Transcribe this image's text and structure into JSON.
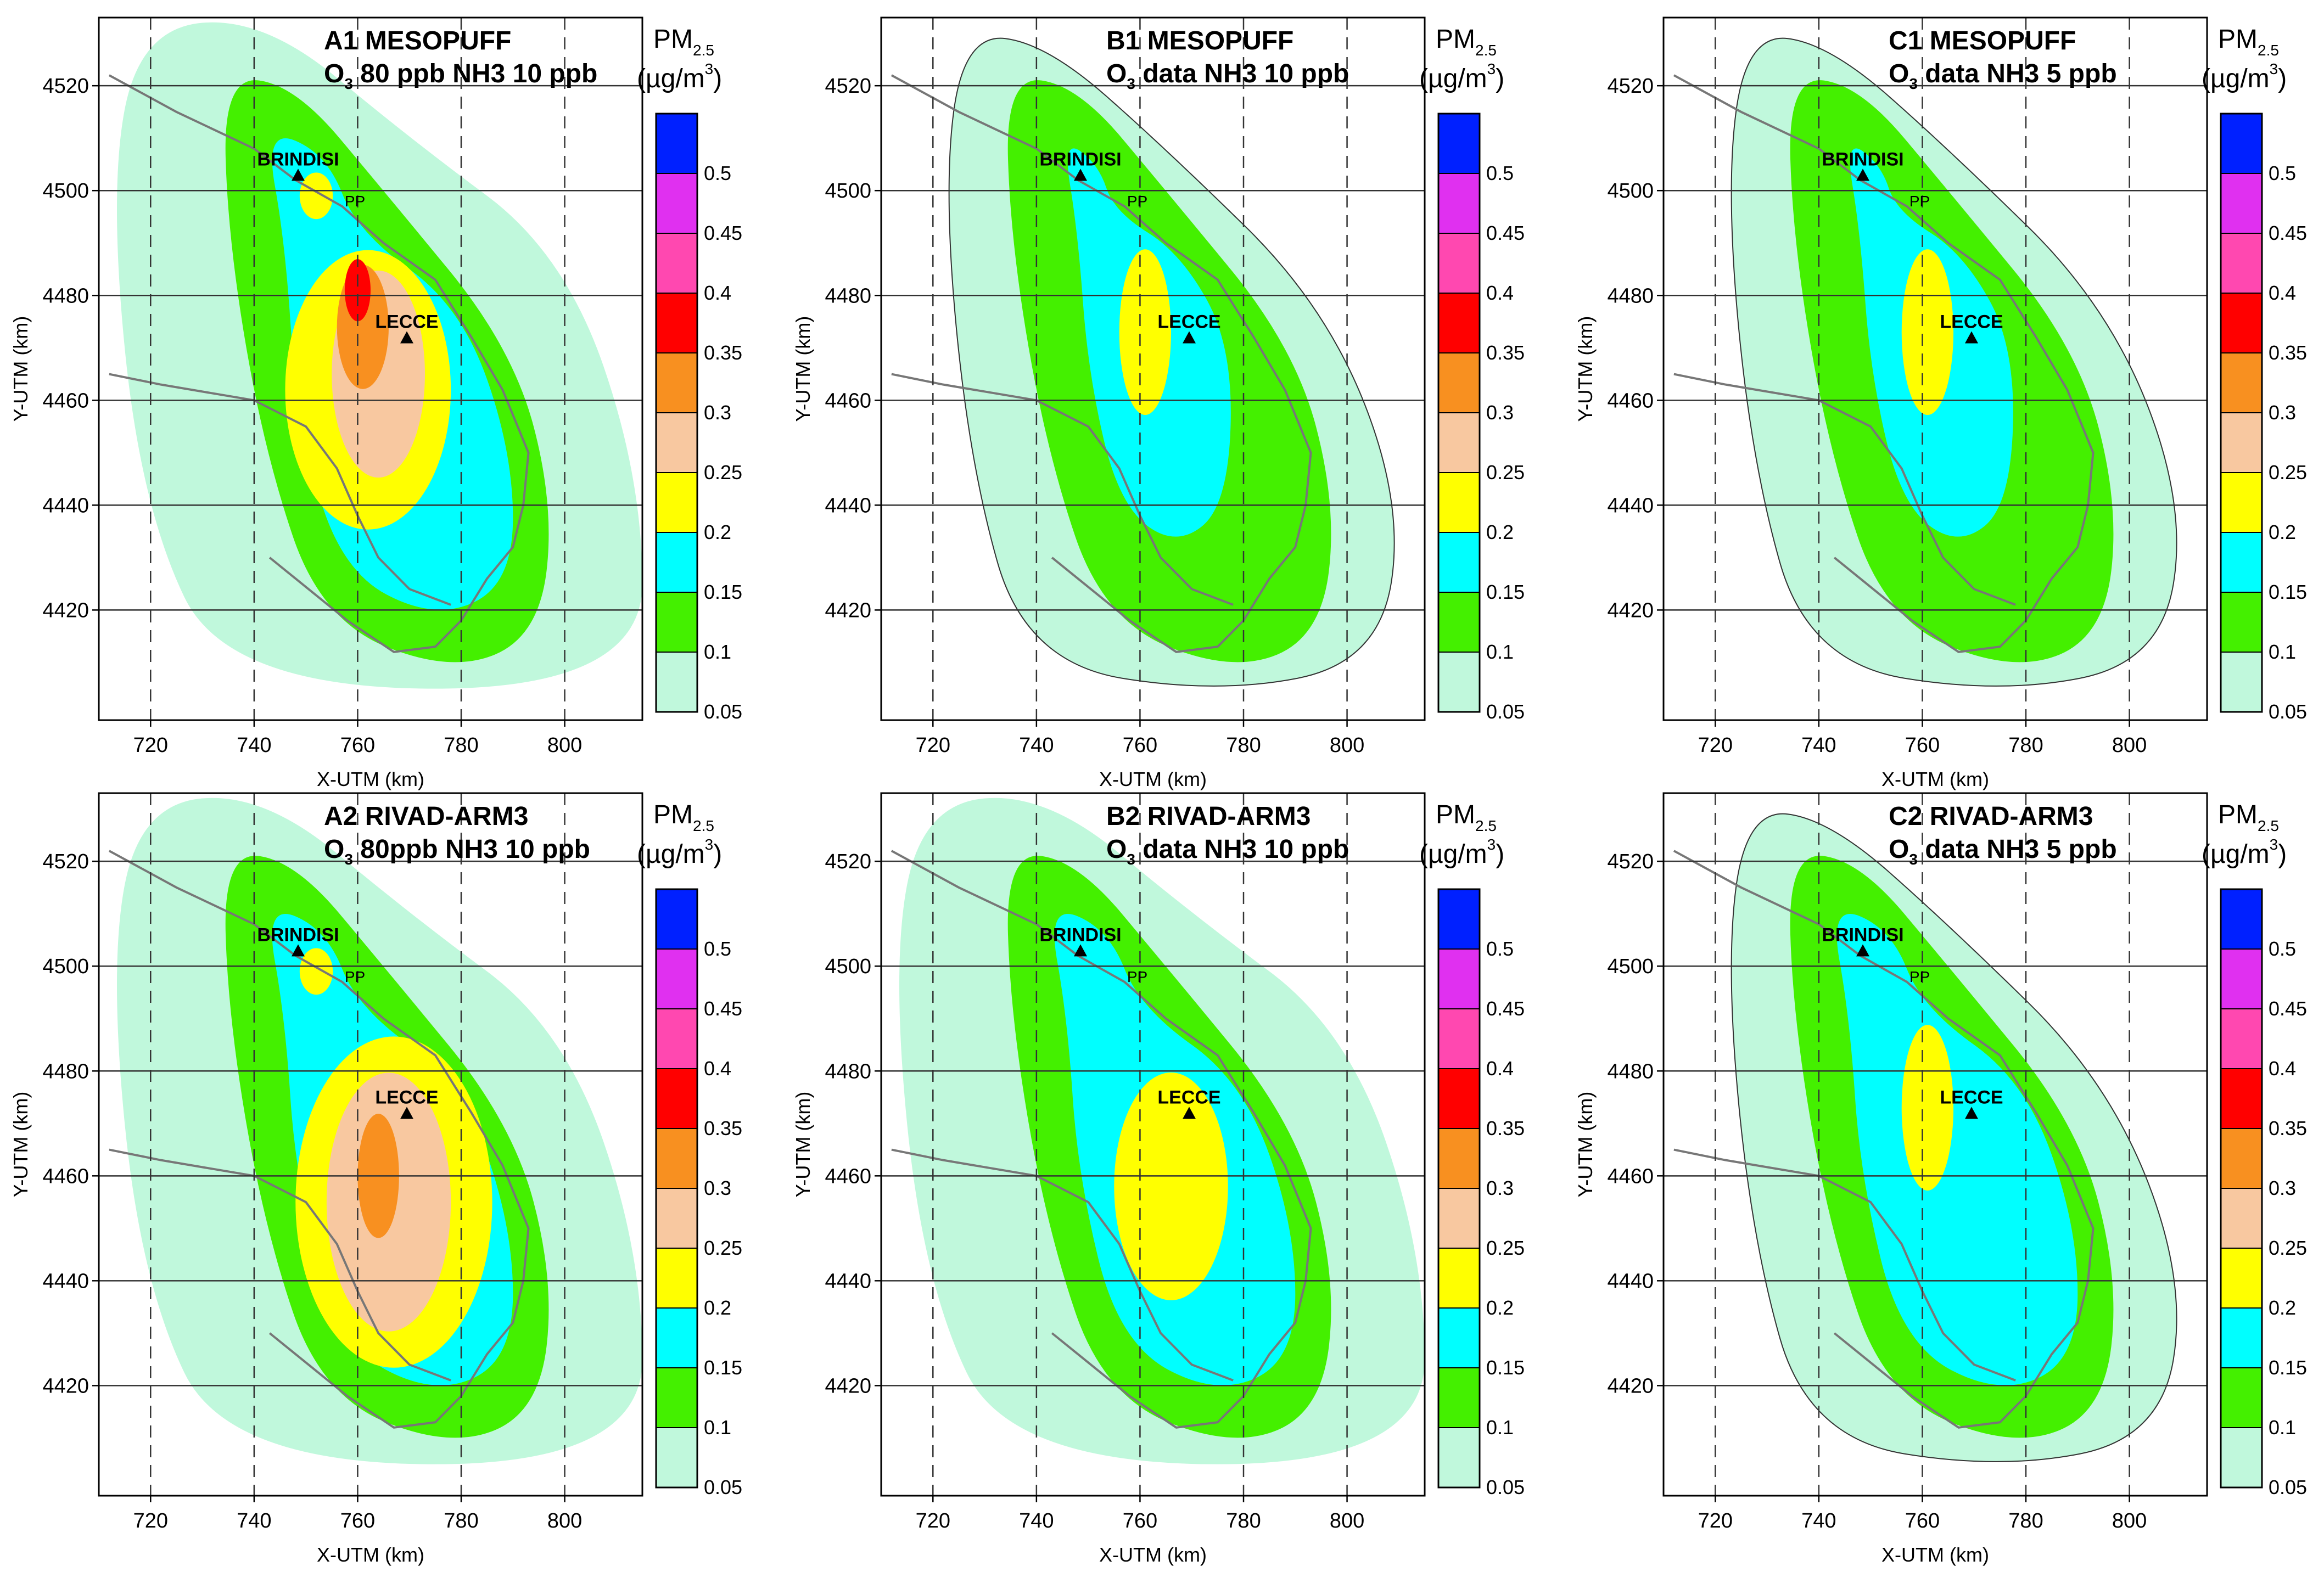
{
  "figure": {
    "unit_label": "PM",
    "unit_sub": "2.5",
    "unit_paren_open": "(µg/m",
    "unit_sup": "3",
    "unit_paren_close": ")",
    "x_axis_label": "X-UTM (km)",
    "y_axis_label": "Y-UTM (km)",
    "x_ticks": [
      "720",
      "740",
      "760",
      "780",
      "800"
    ],
    "y_ticks": [
      "4520",
      "4500",
      "4480",
      "4460",
      "4440",
      "4420"
    ],
    "city_brindisi": "BRINDISI",
    "city_lecce": "LECCE",
    "power_plant": "PP",
    "colorbar_labels": [
      "0.05",
      "0.1",
      "0.15",
      "0.2",
      "0.25",
      "0.3",
      "0.35",
      "0.4",
      "0.45",
      "0.5"
    ],
    "colorbar_colors": [
      "#c0f8dc",
      "#44f000",
      "#00ffff",
      "#ffff00",
      "#f8c8a0",
      "#f89020",
      "#ff0000",
      "#ff48b0",
      "#e030f0",
      "#0020ff"
    ]
  },
  "panels": [
    {
      "id": "A1",
      "line1": "A1 MESOPUFF",
      "o3_a": "O",
      "o3_sub": "3",
      "o3_b": " 80 ppb   NH3 10 ppb",
      "max_class": 6,
      "max_value": 0.35
    },
    {
      "id": "B1",
      "line1": "B1 MESOPUFF",
      "o3_a": "O",
      "o3_sub": "3",
      "o3_b": " data   NH3 10 ppb",
      "max_class": 3,
      "max_value": 0.2
    },
    {
      "id": "C1",
      "line1": "C1 MESOPUFF",
      "o3_a": "O",
      "o3_sub": "3",
      "o3_b": " data   NH3 5 ppb",
      "max_class": 3,
      "max_value": 0.2
    },
    {
      "id": "A2",
      "line1": "A2 RIVAD-ARM3",
      "o3_a": "O",
      "o3_sub": "3",
      "o3_b": " 80ppb   NH3 10 ppb",
      "max_class": 5,
      "max_value": 0.3
    },
    {
      "id": "B2",
      "line1": "B2 RIVAD-ARM3",
      "o3_a": "O",
      "o3_sub": "3",
      "o3_b": " data   NH3 10 ppb",
      "max_class": 3,
      "max_value": 0.2
    },
    {
      "id": "C2",
      "line1": "C2 RIVAD-ARM3",
      "o3_a": "O",
      "o3_sub": "3",
      "o3_b": " data   NH3 5 ppb",
      "max_class": 3,
      "max_value": 0.2
    }
  ]
}
